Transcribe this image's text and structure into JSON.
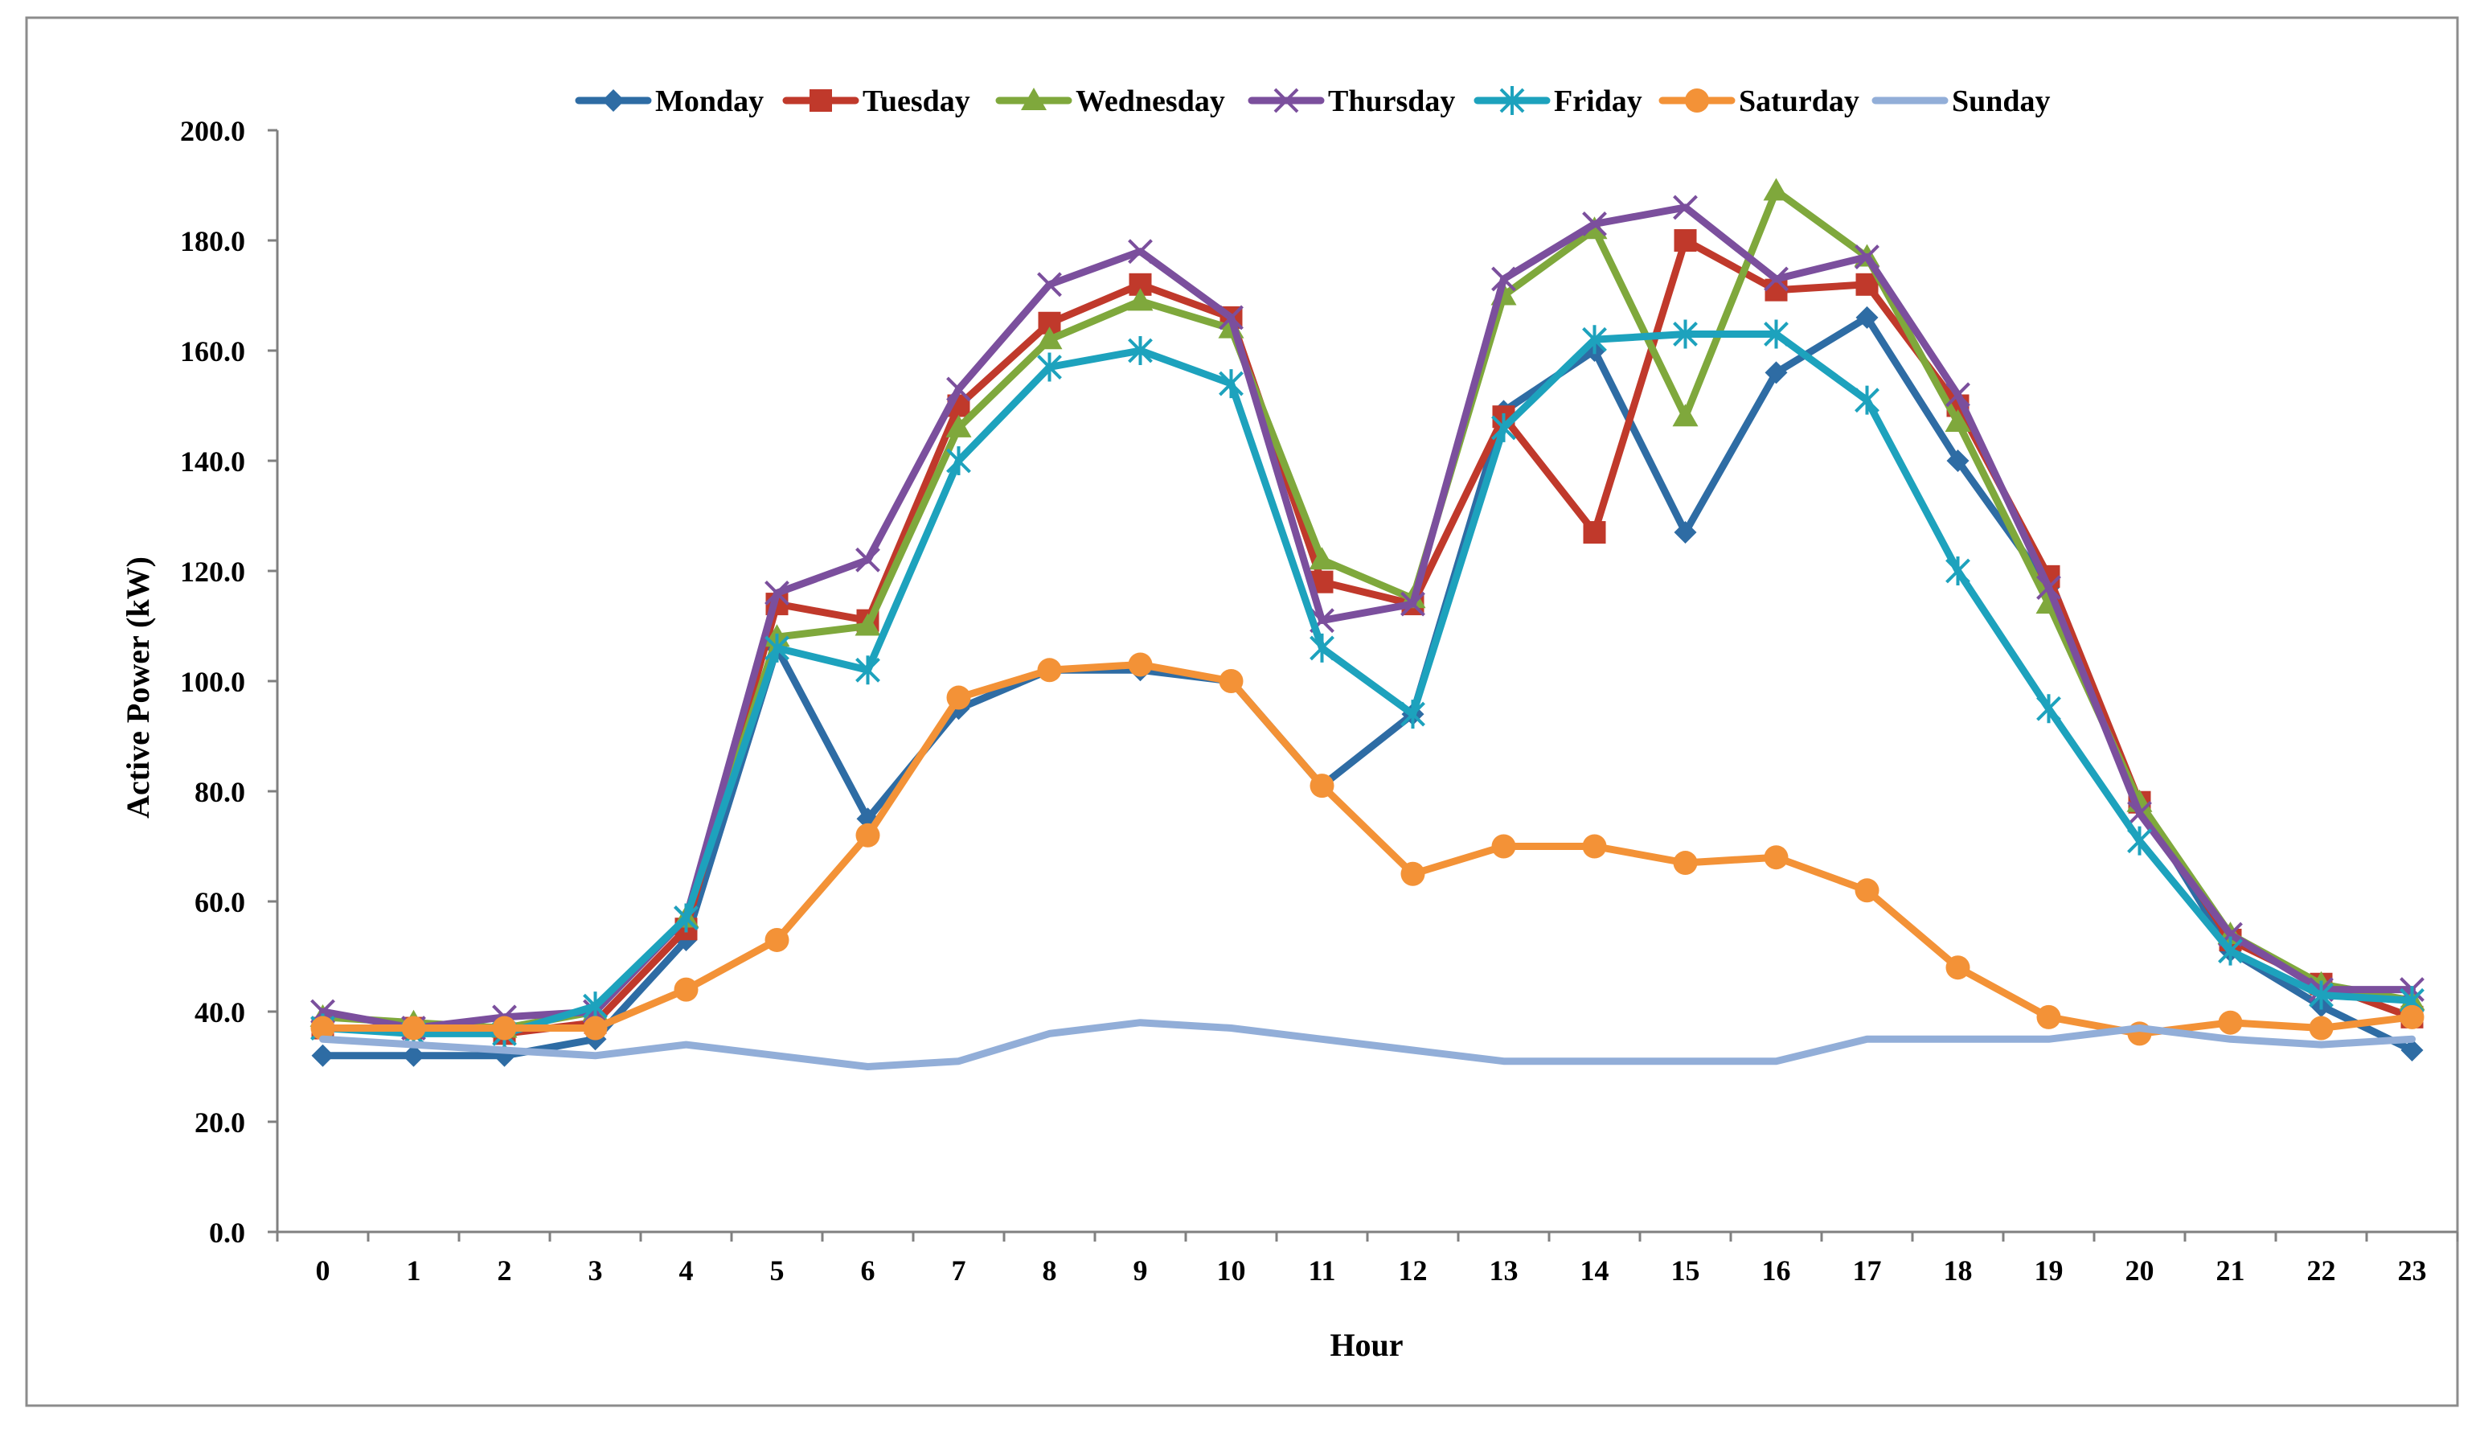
{
  "chart_data": {
    "type": "line",
    "title": "",
    "xlabel": "Hour",
    "ylabel": "Active Power (kW)",
    "ylim": [
      0,
      200
    ],
    "ytick_values": [
      0,
      20,
      40,
      60,
      80,
      100,
      120,
      140,
      160,
      180,
      200
    ],
    "ytick_labels": [
      "0.0",
      "20.0",
      "40.0",
      "60.0",
      "80.0",
      "100.0",
      "120.0",
      "140.0",
      "160.0",
      "180.0",
      "200.0"
    ],
    "categories": [
      "0",
      "1",
      "2",
      "3",
      "4",
      "5",
      "6",
      "7",
      "8",
      "9",
      "10",
      "11",
      "12",
      "13",
      "14",
      "15",
      "16",
      "17",
      "18",
      "19",
      "20",
      "21",
      "22",
      "23"
    ],
    "legend_position": "top",
    "grid": false,
    "series": [
      {
        "name": "Monday",
        "color": "#2e6ca4",
        "marker": "diamond",
        "values": [
          32,
          32,
          32,
          35,
          53,
          106,
          75,
          95,
          102,
          102,
          100,
          81,
          94,
          149,
          160,
          127,
          156,
          166,
          140,
          117,
          78,
          51,
          41,
          33
        ]
      },
      {
        "name": "Tuesday",
        "color": "#c0392b",
        "marker": "square",
        "values": [
          37,
          37,
          36,
          38,
          55,
          114,
          111,
          150,
          165,
          172,
          166,
          118,
          114,
          148,
          127,
          180,
          171,
          172,
          150,
          119,
          78,
          53,
          45,
          39
        ]
      },
      {
        "name": "Wednesday",
        "color": "#7fa83c",
        "marker": "triangle",
        "values": [
          39,
          38,
          37,
          40,
          57,
          108,
          110,
          146,
          162,
          169,
          164,
          122,
          115,
          170,
          182,
          148,
          189,
          177,
          147,
          114,
          78,
          54,
          45,
          42
        ]
      },
      {
        "name": "Thursday",
        "color": "#7b4f9d",
        "marker": "x",
        "values": [
          40,
          37,
          39,
          40,
          57,
          116,
          122,
          153,
          172,
          178,
          166,
          111,
          114,
          173,
          183,
          186,
          173,
          177,
          152,
          117,
          76,
          54,
          44,
          44
        ]
      },
      {
        "name": "Friday",
        "color": "#1da2bd",
        "marker": "star",
        "values": [
          37,
          36,
          36,
          41,
          57,
          106,
          102,
          140,
          157,
          160,
          154,
          106,
          94,
          146,
          162,
          163,
          163,
          151,
          120,
          95,
          71,
          51,
          43,
          42
        ]
      },
      {
        "name": "Saturday",
        "color": "#f39237",
        "marker": "circle",
        "values": [
          37,
          37,
          37,
          37,
          44,
          53,
          72,
          97,
          102,
          103,
          100,
          81,
          65,
          70,
          70,
          67,
          68,
          62,
          48,
          39,
          36,
          38,
          37,
          39
        ]
      },
      {
        "name": "Sunday",
        "color": "#92aed8",
        "marker": "none",
        "values": [
          35,
          34,
          33,
          32,
          34,
          32,
          30,
          31,
          36,
          38,
          37,
          35,
          33,
          31,
          31,
          31,
          31,
          35,
          35,
          35,
          37,
          35,
          34,
          35
        ]
      }
    ]
  }
}
